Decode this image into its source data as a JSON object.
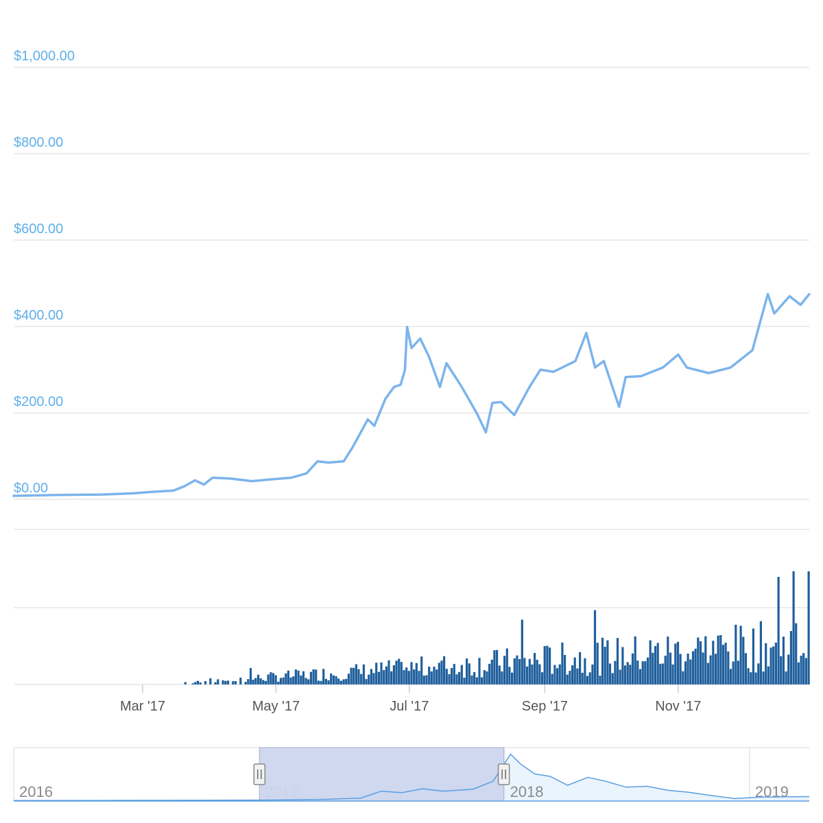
{
  "chart_data": {
    "type": "line",
    "y_axis": {
      "ticks": [
        "$1,000.00",
        "$800.00",
        "$600.00",
        "$400.00",
        "$200.00",
        "$0.00"
      ],
      "range": [
        0,
        1000
      ]
    },
    "x_axis": {
      "range": [
        "2017-01-01",
        "2017-12-31"
      ],
      "ticks": [
        {
          "date": "2017-03-01",
          "label": "Mar '17"
        },
        {
          "date": "2017-05-01",
          "label": "May '17"
        },
        {
          "date": "2017-07-01",
          "label": "Jul '17"
        },
        {
          "date": "2017-09-01",
          "label": "Sep '17"
        },
        {
          "date": "2017-11-01",
          "label": "Nov '17"
        }
      ]
    },
    "grid": true,
    "price_series": {
      "color": "#7cb4ec",
      "points": [
        [
          "2017-01-01",
          8
        ],
        [
          "2017-01-20",
          10
        ],
        [
          "2017-02-10",
          11
        ],
        [
          "2017-02-25",
          14
        ],
        [
          "2017-03-05",
          17
        ],
        [
          "2017-03-15",
          20
        ],
        [
          "2017-03-20",
          30
        ],
        [
          "2017-03-25",
          44
        ],
        [
          "2017-03-29",
          34
        ],
        [
          "2017-04-02",
          50
        ],
        [
          "2017-04-10",
          48
        ],
        [
          "2017-04-20",
          42
        ],
        [
          "2017-05-01",
          47
        ],
        [
          "2017-05-08",
          50
        ],
        [
          "2017-05-15",
          60
        ],
        [
          "2017-05-20",
          88
        ],
        [
          "2017-05-25",
          85
        ],
        [
          "2017-06-01",
          88
        ],
        [
          "2017-06-05",
          120
        ],
        [
          "2017-06-12",
          185
        ],
        [
          "2017-06-15",
          170
        ],
        [
          "2017-06-20",
          232
        ],
        [
          "2017-06-24",
          260
        ],
        [
          "2017-06-27",
          265
        ],
        [
          "2017-06-29",
          299
        ],
        [
          "2017-06-30",
          399
        ],
        [
          "2017-07-02",
          350
        ],
        [
          "2017-07-06",
          372
        ],
        [
          "2017-07-10",
          330
        ],
        [
          "2017-07-15",
          260
        ],
        [
          "2017-07-18",
          315
        ],
        [
          "2017-07-25",
          260
        ],
        [
          "2017-08-01",
          198
        ],
        [
          "2017-08-05",
          155
        ],
        [
          "2017-08-08",
          223
        ],
        [
          "2017-08-12",
          225
        ],
        [
          "2017-08-18",
          195
        ],
        [
          "2017-08-25",
          260
        ],
        [
          "2017-08-30",
          300
        ],
        [
          "2017-09-05",
          295
        ],
        [
          "2017-09-15",
          320
        ],
        [
          "2017-09-20",
          385
        ],
        [
          "2017-09-24",
          305
        ],
        [
          "2017-09-28",
          320
        ],
        [
          "2017-10-05",
          214
        ],
        [
          "2017-10-08",
          283
        ],
        [
          "2017-10-15",
          285
        ],
        [
          "2017-10-25",
          305
        ],
        [
          "2017-11-01",
          335
        ],
        [
          "2017-11-05",
          305
        ],
        [
          "2017-11-15",
          292
        ],
        [
          "2017-11-25",
          305
        ],
        [
          "2017-12-05",
          345
        ],
        [
          "2017-12-12",
          475
        ],
        [
          "2017-12-15",
          430
        ],
        [
          "2017-12-22",
          470
        ],
        [
          "2017-12-27",
          450
        ],
        [
          "2017-12-31",
          475
        ]
      ]
    },
    "volume_series": {
      "color": "#1f5f9c"
    },
    "navigator": {
      "ticks": [
        "2016",
        "2017",
        "2018",
        "2019"
      ],
      "range": [
        "2016-01-01",
        "2019-03-31"
      ],
      "selected": [
        "2017-01-01",
        "2017-12-31"
      ]
    }
  }
}
